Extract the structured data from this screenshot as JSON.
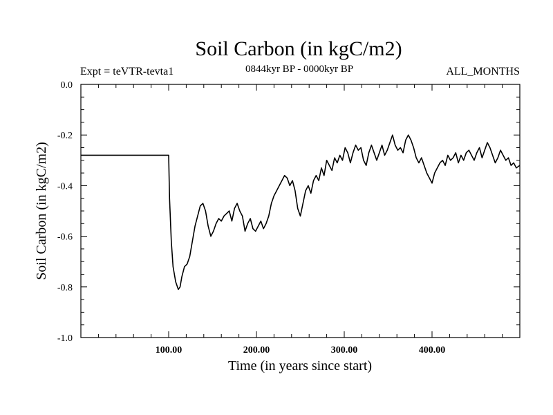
{
  "chart_data": {
    "type": "line",
    "title": "Soil Carbon (in kgC/m2)",
    "subtitle_left": "Expt = teVTR-tevta1",
    "subtitle_center": "0844kyr BP - 0000kyr BP",
    "subtitle_right": "ALL_MONTHS",
    "xlabel": "Time (in years since start)",
    "ylabel": "Soil Carbon (in kgC/m2)",
    "xlim": [
      0,
      500
    ],
    "ylim": [
      -1.0,
      0.0
    ],
    "x_major_ticks": [
      100,
      200,
      300,
      400
    ],
    "x_tick_labels": [
      "100.00",
      "200.00",
      "300.00",
      "400.00"
    ],
    "y_major_ticks": [
      0.0,
      -0.2,
      -0.4,
      -0.6,
      -0.8,
      -1.0
    ],
    "y_tick_labels": [
      "0.0",
      "-0.2",
      "-0.4",
      "-0.6",
      "-0.8",
      "-1.0"
    ],
    "series": [
      {
        "name": "Soil Carbon",
        "x": [
          0,
          100,
          101,
          103,
          105,
          108,
          111,
          113,
          115,
          118,
          121,
          124,
          127,
          130,
          133,
          136,
          139,
          142,
          145,
          148,
          151,
          154,
          157,
          160,
          163,
          166,
          169,
          172,
          175,
          178,
          181,
          184,
          187,
          190,
          193,
          196,
          199,
          202,
          205,
          208,
          211,
          214,
          217,
          220,
          223,
          226,
          229,
          232,
          235,
          238,
          241,
          244,
          247,
          250,
          253,
          256,
          259,
          262,
          265,
          268,
          271,
          274,
          277,
          280,
          283,
          286,
          289,
          292,
          295,
          298,
          301,
          304,
          307,
          310,
          313,
          316,
          319,
          322,
          325,
          328,
          331,
          334,
          337,
          340,
          343,
          346,
          349,
          352,
          355,
          358,
          361,
          364,
          367,
          370,
          373,
          376,
          379,
          382,
          385,
          388,
          391,
          394,
          397,
          400,
          403,
          406,
          409,
          412,
          415,
          418,
          421,
          424,
          427,
          430,
          433,
          436,
          439,
          442,
          445,
          448,
          451,
          454,
          457,
          460,
          463,
          466,
          469,
          472,
          475,
          478,
          481,
          484,
          487,
          490,
          493,
          496,
          500
        ],
        "y": [
          -0.28,
          -0.28,
          -0.45,
          -0.62,
          -0.72,
          -0.78,
          -0.81,
          -0.8,
          -0.76,
          -0.72,
          -0.71,
          -0.68,
          -0.62,
          -0.56,
          -0.52,
          -0.48,
          -0.47,
          -0.5,
          -0.56,
          -0.6,
          -0.58,
          -0.55,
          -0.53,
          -0.54,
          -0.52,
          -0.51,
          -0.5,
          -0.54,
          -0.49,
          -0.47,
          -0.5,
          -0.52,
          -0.58,
          -0.55,
          -0.53,
          -0.57,
          -0.58,
          -0.56,
          -0.54,
          -0.57,
          -0.55,
          -0.52,
          -0.47,
          -0.44,
          -0.42,
          -0.4,
          -0.38,
          -0.36,
          -0.37,
          -0.4,
          -0.38,
          -0.42,
          -0.49,
          -0.52,
          -0.47,
          -0.42,
          -0.4,
          -0.43,
          -0.38,
          -0.36,
          -0.38,
          -0.33,
          -0.36,
          -0.3,
          -0.32,
          -0.34,
          -0.29,
          -0.31,
          -0.28,
          -0.3,
          -0.25,
          -0.27,
          -0.31,
          -0.27,
          -0.24,
          -0.26,
          -0.25,
          -0.3,
          -0.32,
          -0.27,
          -0.24,
          -0.27,
          -0.3,
          -0.27,
          -0.24,
          -0.28,
          -0.26,
          -0.23,
          -0.2,
          -0.24,
          -0.26,
          -0.25,
          -0.27,
          -0.22,
          -0.2,
          -0.22,
          -0.25,
          -0.29,
          -0.31,
          -0.29,
          -0.32,
          -0.35,
          -0.37,
          -0.39,
          -0.35,
          -0.33,
          -0.31,
          -0.3,
          -0.32,
          -0.28,
          -0.3,
          -0.29,
          -0.27,
          -0.31,
          -0.28,
          -0.3,
          -0.27,
          -0.26,
          -0.28,
          -0.3,
          -0.27,
          -0.25,
          -0.29,
          -0.26,
          -0.23,
          -0.25,
          -0.28,
          -0.31,
          -0.29,
          -0.26,
          -0.28,
          -0.3,
          -0.29,
          -0.32,
          -0.31,
          -0.33,
          -0.32
        ]
      }
    ]
  }
}
